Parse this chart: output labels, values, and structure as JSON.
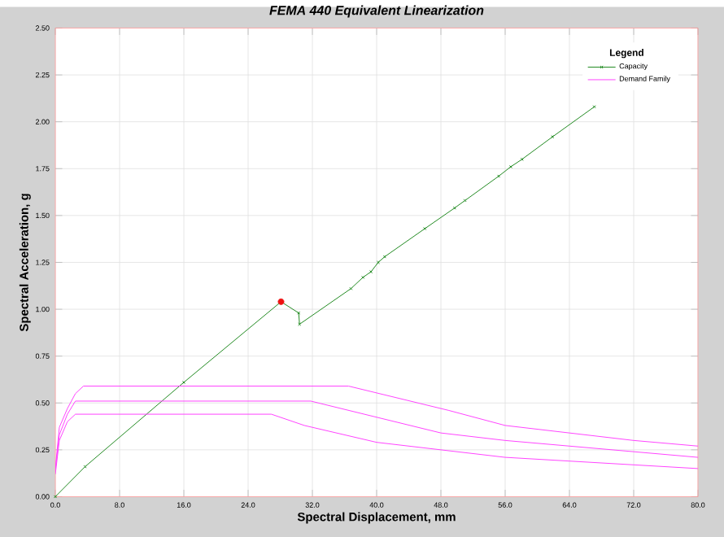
{
  "chart_data": {
    "type": "line",
    "title": "FEMA 440 Equivalent Linearization",
    "xlabel": "Spectral Displacement, mm",
    "ylabel": "Spectral Acceleration, g",
    "legend_title": "Legend",
    "xlim": [
      0,
      80
    ],
    "ylim": [
      0,
      2.5
    ],
    "xticks": [
      {
        "value": 0,
        "label": "0.0"
      },
      {
        "value": 8,
        "label": "8.0"
      },
      {
        "value": 16,
        "label": "16.0"
      },
      {
        "value": 24,
        "label": "24.0"
      },
      {
        "value": 32,
        "label": "32.0"
      },
      {
        "value": 40,
        "label": "40.0"
      },
      {
        "value": 48,
        "label": "48.0"
      },
      {
        "value": 56,
        "label": "56.0"
      },
      {
        "value": 64,
        "label": "64.0"
      },
      {
        "value": 72,
        "label": "72.0"
      },
      {
        "value": 80,
        "label": "80.0"
      }
    ],
    "yticks": [
      {
        "value": 0,
        "label": "0.00"
      },
      {
        "value": 0.25,
        "label": "0.25"
      },
      {
        "value": 0.5,
        "label": "0.50"
      },
      {
        "value": 0.75,
        "label": "0.75"
      },
      {
        "value": 1,
        "label": "1.00"
      },
      {
        "value": 1.25,
        "label": "1.25"
      },
      {
        "value": 1.5,
        "label": "1.50"
      },
      {
        "value": 1.75,
        "label": "1.75"
      },
      {
        "value": 2,
        "label": "2.00"
      },
      {
        "value": 2.25,
        "label": "2.25"
      },
      {
        "value": 2.5,
        "label": "2.50"
      }
    ],
    "grid": true,
    "legend": "top right",
    "series": [
      {
        "name": "Capacity",
        "color": "#228b22",
        "marker": "cross",
        "x": [
          0,
          3.7,
          16,
          28.1,
          30.3,
          30.4,
          36.8,
          38.3,
          39.3,
          40.2,
          41.0,
          46.0,
          49.7,
          51.0,
          55.2,
          56.7,
          58.1,
          61.9,
          67.1
        ],
        "values": [
          0,
          0.16,
          0.61,
          1.04,
          0.98,
          0.92,
          1.11,
          1.17,
          1.2,
          1.25,
          1.28,
          1.43,
          1.54,
          1.58,
          1.71,
          1.76,
          1.8,
          1.92,
          2.08
        ]
      },
      {
        "name": "Demand Family",
        "color": "#ff44ff",
        "marker": "none",
        "x": [
          0,
          0.5,
          1.5,
          2.5,
          3.5,
          36.5,
          49,
          56,
          72,
          80
        ],
        "values": [
          0.15,
          0.37,
          0.47,
          0.55,
          0.59,
          0.59,
          0.46,
          0.38,
          0.3,
          0.27
        ]
      },
      {
        "color": "#ff44ff",
        "marker": "none",
        "x": [
          0,
          0.5,
          1.5,
          2.5,
          31.8,
          48,
          56,
          72,
          80
        ],
        "values": [
          0.14,
          0.33,
          0.44,
          0.51,
          0.51,
          0.34,
          0.3,
          0.24,
          0.21
        ]
      },
      {
        "color": "#ff44ff",
        "marker": "none",
        "x": [
          0,
          0.5,
          1.5,
          2.5,
          26.9,
          31,
          40,
          48,
          56,
          72,
          80
        ],
        "values": [
          0.12,
          0.3,
          0.4,
          0.44,
          0.44,
          0.38,
          0.29,
          0.25,
          0.21,
          0.17,
          0.15
        ]
      },
      {
        "type": "scatter",
        "color": "#ee1111",
        "marker": "circle",
        "x": [
          28.1
        ],
        "values": [
          1.04
        ]
      }
    ]
  }
}
